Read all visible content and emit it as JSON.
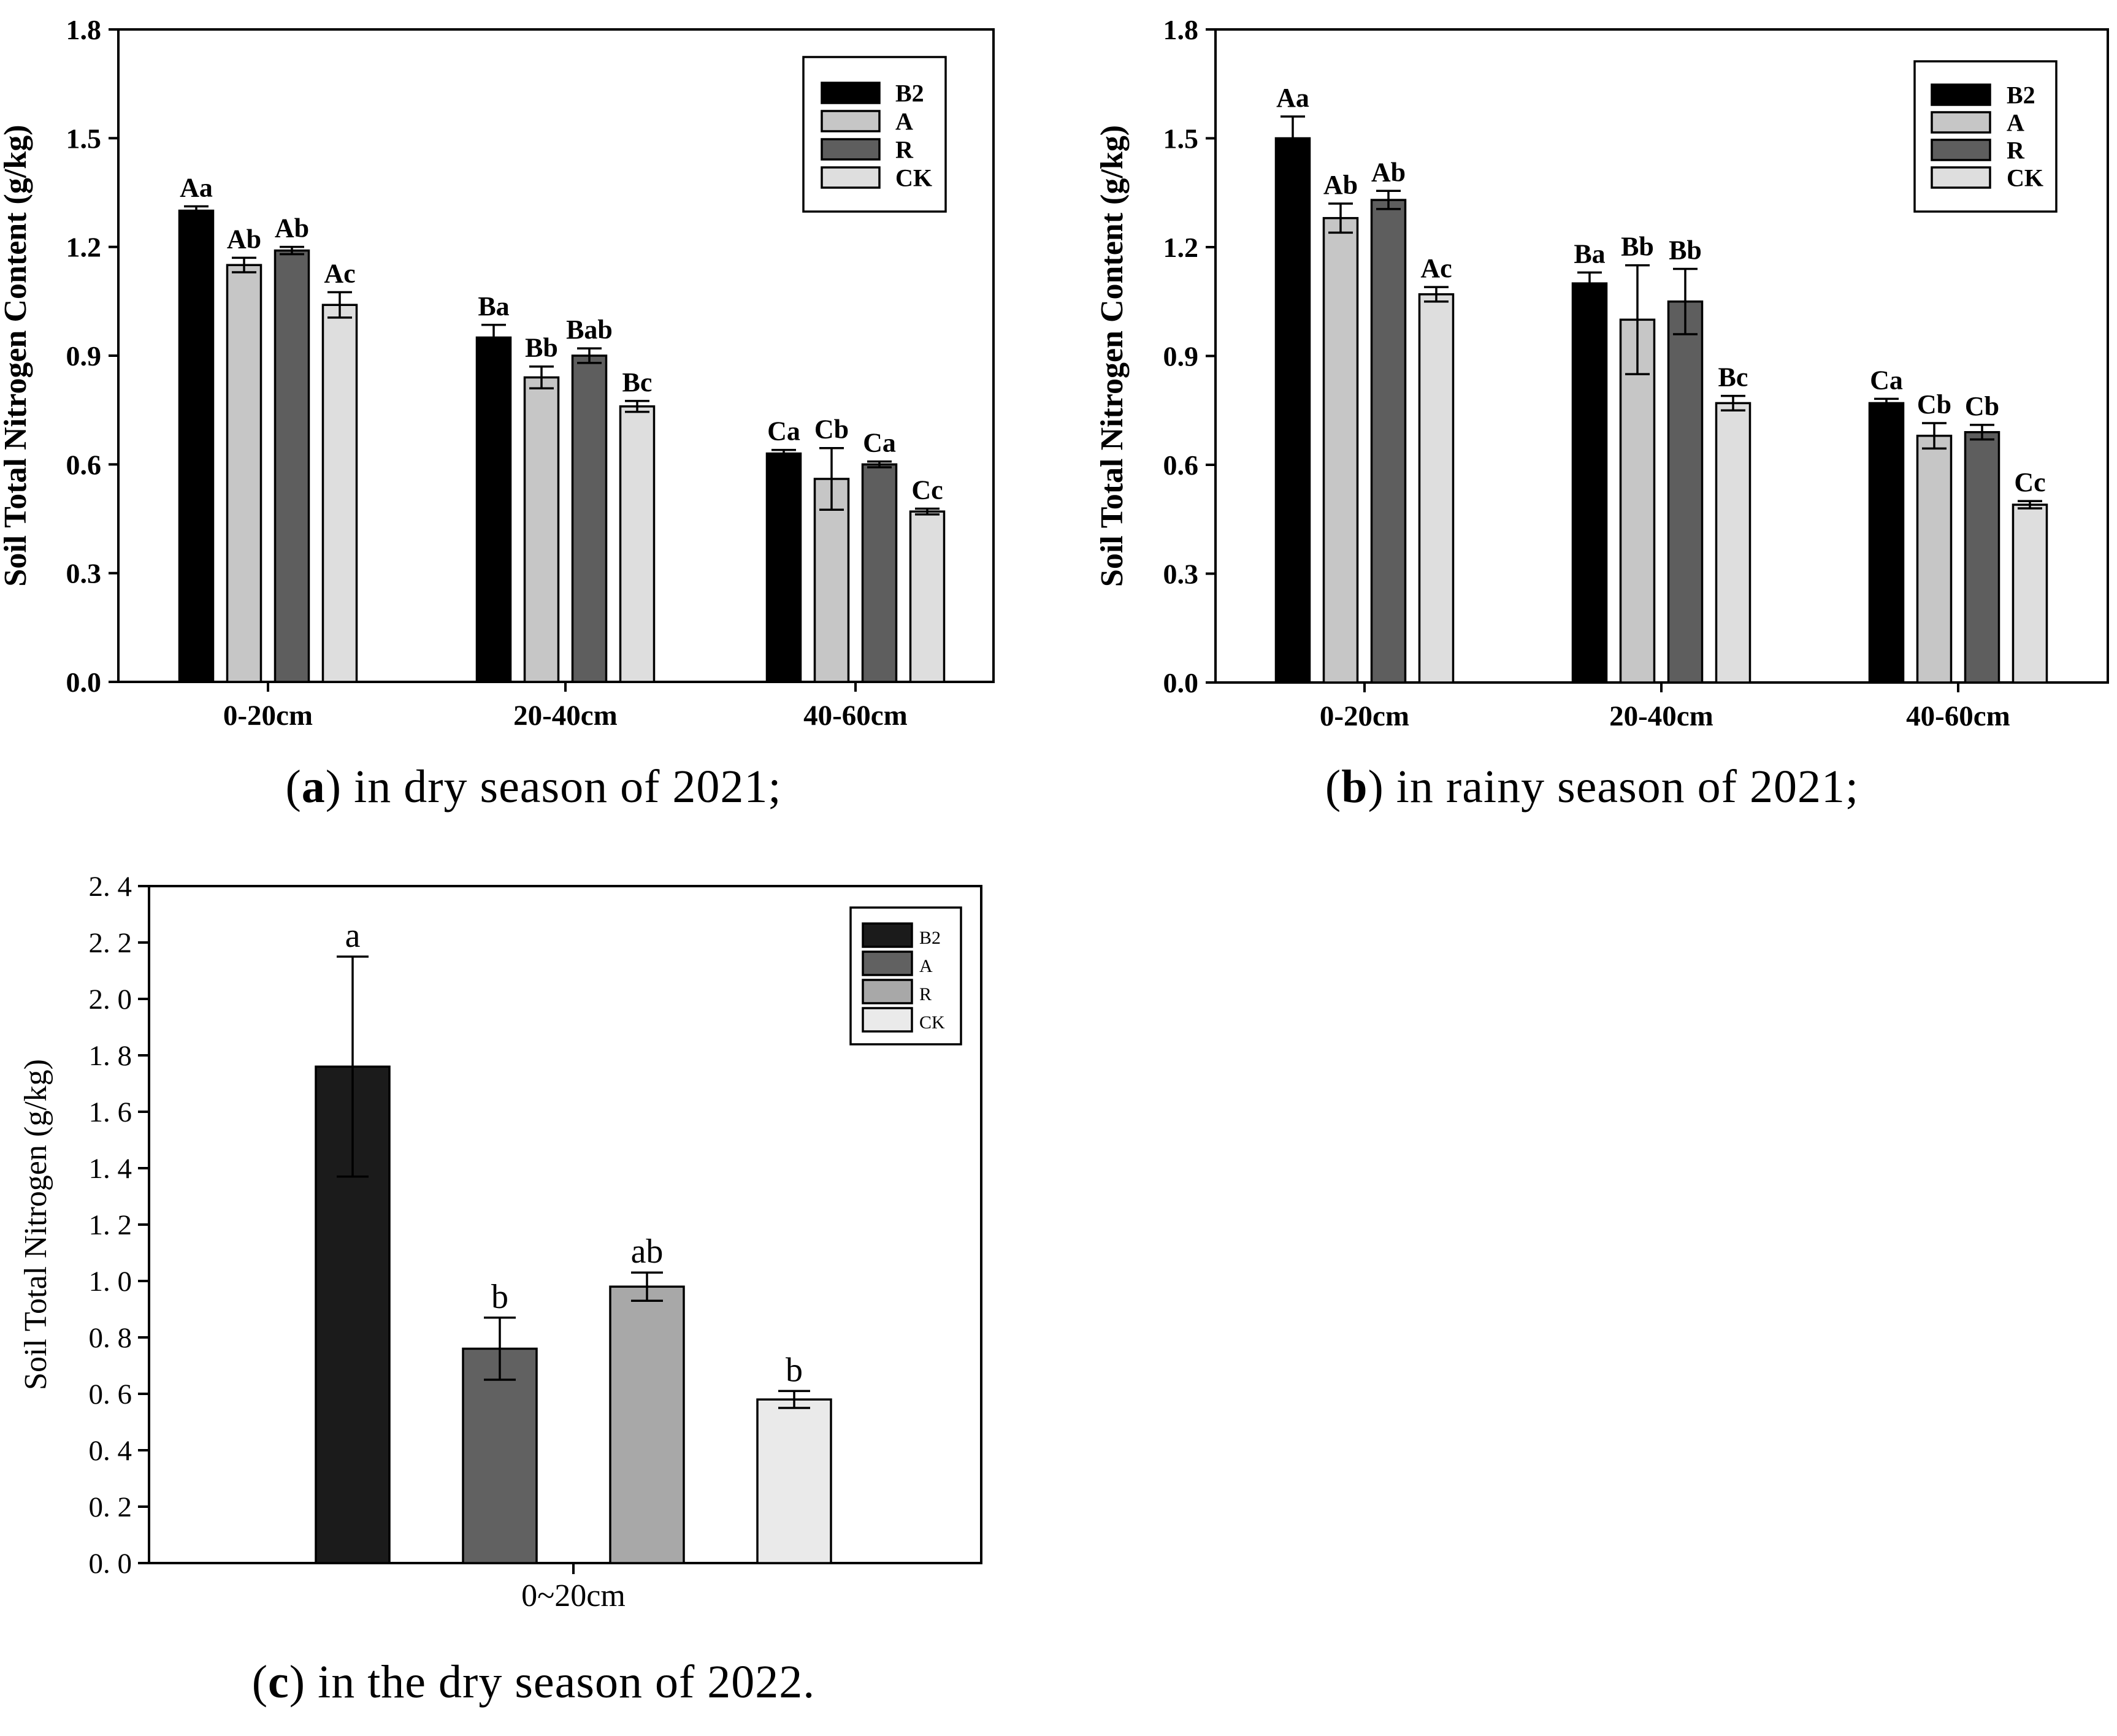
{
  "captions": {
    "a": {
      "pre": "(",
      "letter": "a",
      "post": ") in dry season of 2021;"
    },
    "b": {
      "pre": "(",
      "letter": "b",
      "post": ") in rainy season of 2021;"
    },
    "c": {
      "pre": "(",
      "letter": "c",
      "post": ") in the dry season of 2022."
    }
  },
  "chart_data": [
    {
      "id": "a",
      "type": "bar",
      "title": "(a) in dry season of 2021;",
      "xlabel": "",
      "ylabel": "Soil Total Nitrogen Content (g/kg)",
      "ylim": [
        0,
        1.8
      ],
      "grid": false,
      "legend_position": "top-right-inside",
      "yticks": [
        {
          "value": 0.0,
          "label": "0.0"
        },
        {
          "value": 0.3,
          "label": "0.3"
        },
        {
          "value": 0.6,
          "label": "0.6"
        },
        {
          "value": 0.9,
          "label": "0.9"
        },
        {
          "value": 1.2,
          "label": "1.2"
        },
        {
          "value": 1.5,
          "label": "1.5"
        },
        {
          "value": 1.8,
          "label": "1.8"
        }
      ],
      "categories": [
        "0-20cm",
        "20-40cm",
        "40-60cm"
      ],
      "legend": [
        "B2",
        "A",
        "R",
        "CK"
      ],
      "series": [
        {
          "name": "B2",
          "color": "#000000",
          "values": [
            1.3,
            0.95,
            0.63
          ],
          "errors": [
            0.012,
            0.035,
            0.01
          ],
          "letters": [
            "Aa",
            "Ba",
            "Ca"
          ]
        },
        {
          "name": "A",
          "color": "#c6c6c6",
          "values": [
            1.15,
            0.84,
            0.56
          ],
          "errors": [
            0.02,
            0.03,
            0.085
          ],
          "letters": [
            "Ab",
            "Bb",
            "Cb"
          ]
        },
        {
          "name": "R",
          "color": "#5e5e5e",
          "values": [
            1.19,
            0.9,
            0.6
          ],
          "errors": [
            0.01,
            0.02,
            0.008
          ],
          "letters": [
            "Ab",
            "Bab",
            "Ca"
          ]
        },
        {
          "name": "CK",
          "color": "#dedede",
          "values": [
            1.04,
            0.76,
            0.47
          ],
          "errors": [
            0.035,
            0.015,
            0.008
          ],
          "letters": [
            "Ac",
            "Bc",
            "Cc"
          ]
        }
      ]
    },
    {
      "id": "b",
      "type": "bar",
      "title": "(b) in rainy season of 2021;",
      "xlabel": "",
      "ylabel": "Soil Total Nitrogen Content (g/kg)",
      "ylim": [
        0,
        1.8
      ],
      "grid": false,
      "legend_position": "top-right-inside",
      "yticks": [
        {
          "value": 0.0,
          "label": "0.0"
        },
        {
          "value": 0.3,
          "label": "0.3"
        },
        {
          "value": 0.6,
          "label": "0.6"
        },
        {
          "value": 0.9,
          "label": "0.9"
        },
        {
          "value": 1.2,
          "label": "1.2"
        },
        {
          "value": 1.5,
          "label": "1.5"
        },
        {
          "value": 1.8,
          "label": "1.8"
        }
      ],
      "categories": [
        "0-20cm",
        "20-40cm",
        "40-60cm"
      ],
      "legend": [
        "B2",
        "A",
        "R",
        "CK"
      ],
      "series": [
        {
          "name": "B2",
          "color": "#000000",
          "values": [
            1.5,
            1.1,
            0.77
          ],
          "errors": [
            0.06,
            0.03,
            0.012
          ],
          "letters": [
            "Aa",
            "Ba",
            "Ca"
          ]
        },
        {
          "name": "A",
          "color": "#c6c6c6",
          "values": [
            1.28,
            1.0,
            0.68
          ],
          "errors": [
            0.04,
            0.15,
            0.035
          ],
          "letters": [
            "Ab",
            "Bb",
            "Cb"
          ]
        },
        {
          "name": "R",
          "color": "#5e5e5e",
          "values": [
            1.33,
            1.05,
            0.69
          ],
          "errors": [
            0.025,
            0.09,
            0.02
          ],
          "letters": [
            "Ab",
            "Bb",
            "Cb"
          ]
        },
        {
          "name": "CK",
          "color": "#dedede",
          "values": [
            1.07,
            0.77,
            0.49
          ],
          "errors": [
            0.02,
            0.02,
            0.01
          ],
          "letters": [
            "Ac",
            "Bc",
            "Cc"
          ]
        }
      ]
    },
    {
      "id": "c",
      "type": "bar",
      "title": "(c) in the dry season of 2022.",
      "xlabel": "",
      "ylabel": "Soil Total Nitrogen (g/kg)",
      "ylim": [
        0,
        2.4
      ],
      "grid": false,
      "legend_position": "top-right-inside",
      "yticks": [
        {
          "value": 0.0,
          "label": "0. 0"
        },
        {
          "value": 0.2,
          "label": "0. 2"
        },
        {
          "value": 0.4,
          "label": "0. 4"
        },
        {
          "value": 0.6,
          "label": "0. 6"
        },
        {
          "value": 0.8,
          "label": "0. 8"
        },
        {
          "value": 1.0,
          "label": "1. 0"
        },
        {
          "value": 1.2,
          "label": "1. 2"
        },
        {
          "value": 1.4,
          "label": "1. 4"
        },
        {
          "value": 1.6,
          "label": "1. 6"
        },
        {
          "value": 1.8,
          "label": "1. 8"
        },
        {
          "value": 2.0,
          "label": "2. 0"
        },
        {
          "value": 2.2,
          "label": "2. 2"
        },
        {
          "value": 2.4,
          "label": "2. 4"
        }
      ],
      "categories": [
        "0~20cm"
      ],
      "legend": [
        "B2",
        "A",
        "R",
        "CK"
      ],
      "series": [
        {
          "name": "B2",
          "color": "#1b1b1b",
          "values": [
            1.76
          ],
          "errors": [
            0.39
          ],
          "letters": [
            "a"
          ]
        },
        {
          "name": "A",
          "color": "#616161",
          "values": [
            0.76
          ],
          "errors": [
            0.11
          ],
          "letters": [
            "b"
          ]
        },
        {
          "name": "R",
          "color": "#a8a8a8",
          "values": [
            0.98
          ],
          "errors": [
            0.05
          ],
          "letters": [
            "ab"
          ]
        },
        {
          "name": "CK",
          "color": "#eaeaea",
          "values": [
            0.58
          ],
          "errors": [
            0.03
          ],
          "letters": [
            "b"
          ]
        }
      ]
    }
  ]
}
